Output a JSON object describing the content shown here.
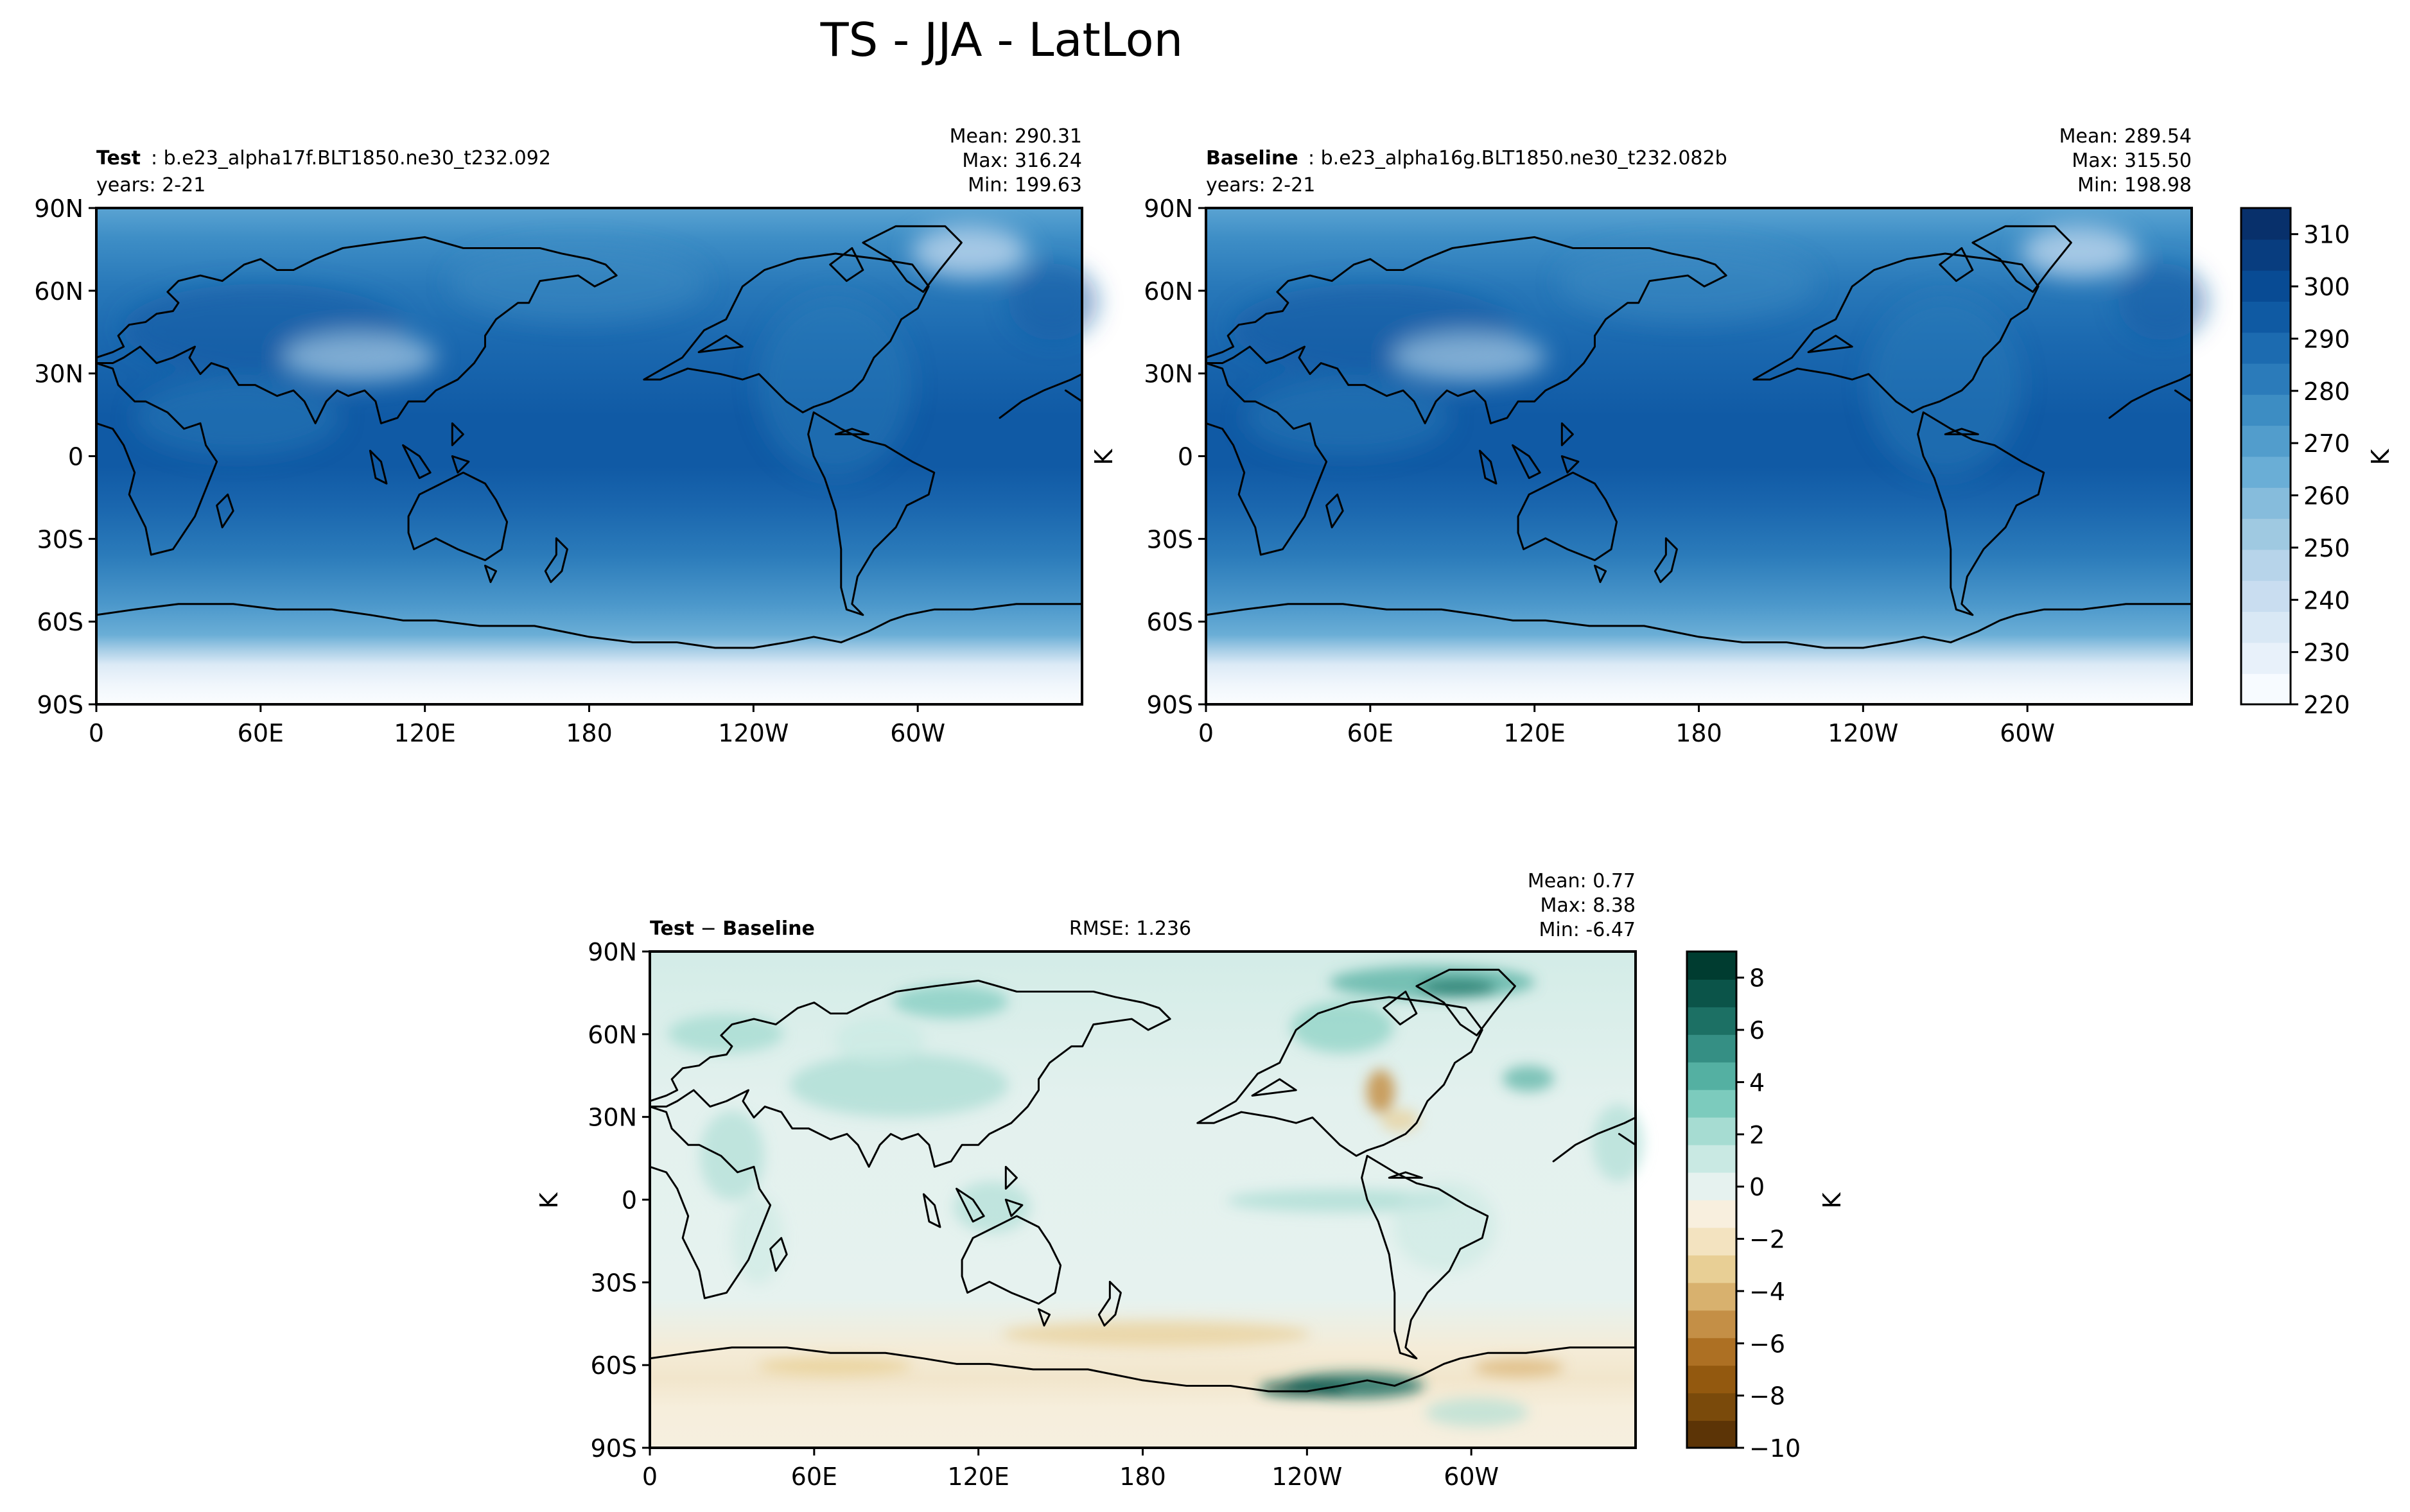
{
  "figure": {
    "title": "TS - JJA - LatLon"
  },
  "chart_data": [
    {
      "type": "heatmap",
      "panel": "test",
      "label_bold": "Test",
      "label_text": ": b.e23_alpha17f.BLT1850.ne30_t232.092",
      "years": "years: 2-21",
      "stats": [
        "Mean: 290.31",
        "Max: 316.24",
        "Min: 199.63"
      ],
      "xlabel": "",
      "ylabel": "",
      "x_ticks": [
        "0",
        "60E",
        "120E",
        "180",
        "120W",
        "60W"
      ],
      "y_ticks": [
        "90N",
        "60N",
        "30N",
        "0",
        "30S",
        "60S",
        "90S"
      ],
      "unit_label": "K"
    },
    {
      "type": "heatmap",
      "panel": "baseline",
      "label_bold": "Baseline",
      "label_text": ": b.e23_alpha16g.BLT1850.ne30_t232.082b",
      "years": "years: 2-21",
      "stats": [
        "Mean: 289.54",
        "Max: 315.50",
        "Min: 198.98"
      ],
      "x_ticks": [
        "0",
        "60E",
        "120E",
        "180",
        "120W",
        "60W"
      ],
      "y_ticks": [
        "90N",
        "60N",
        "30N",
        "0",
        "30S",
        "60S",
        "90S"
      ],
      "colorbar": {
        "label": "K",
        "range": [
          220,
          315
        ],
        "ticks": [
          "310",
          "300",
          "290",
          "280",
          "270",
          "260",
          "250",
          "240",
          "230",
          "220"
        ],
        "colormap": "Blues",
        "colors": [
          "#f7fbff",
          "#e8f1fa",
          "#d9e8f5",
          "#c9ddf0",
          "#b7d4ea",
          "#9fc9e1",
          "#86bcdc",
          "#6aaed6",
          "#529dcc",
          "#3d8dc3",
          "#2b7bba",
          "#1c6bb0",
          "#0f5aa3",
          "#084b94",
          "#083d7f",
          "#08306b"
        ]
      }
    },
    {
      "type": "heatmap",
      "panel": "difference",
      "label_bold_a": "Test",
      "label_sep": " − ",
      "label_bold_b": "Baseline",
      "rmse": "RMSE: 1.236",
      "stats": [
        "Mean:  0.77",
        "Max:  8.38",
        "Min: -6.47"
      ],
      "x_ticks": [
        "0",
        "60E",
        "120E",
        "180",
        "120W",
        "60W"
      ],
      "y_ticks": [
        "90N",
        "60N",
        "30N",
        "0",
        "30S",
        "60S",
        "90S"
      ],
      "unit_label": "K",
      "colorbar": {
        "label": "K",
        "range": [
          -10,
          9
        ],
        "ticks": [
          "8",
          "6",
          "4",
          "2",
          "0",
          "−2",
          "−4",
          "−6",
          "−8",
          "−10"
        ],
        "colormap": "BrBG",
        "colors": [
          "#5c3406",
          "#7a4a0b",
          "#93590f",
          "#ad7023",
          "#c48f46",
          "#d8b16e",
          "#e8cf95",
          "#f3e3c0",
          "#f8efde",
          "#e6f2ef",
          "#c9e9e3",
          "#a6dcd2",
          "#7ccbbd",
          "#54b0a2",
          "#358f84",
          "#1c7064",
          "#0b5449",
          "#003c30"
        ]
      }
    }
  ]
}
